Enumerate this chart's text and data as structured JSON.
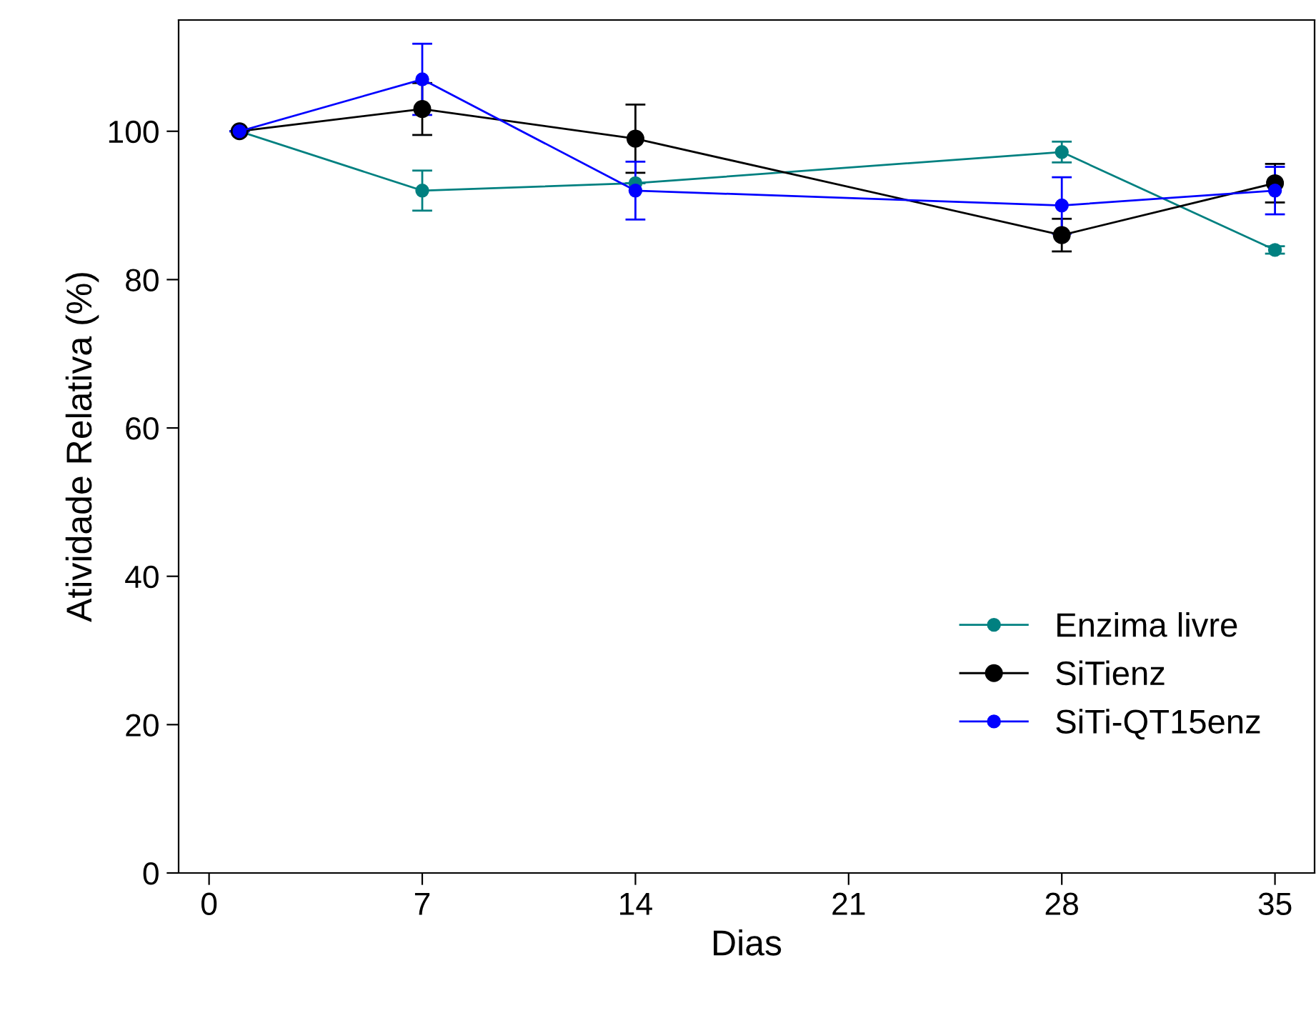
{
  "chart_data": {
    "type": "line",
    "xlabel": "Dias",
    "ylabel": "Atividade Relativa (%)",
    "x": [
      1,
      7,
      14,
      28,
      35
    ],
    "xlim": [
      -1,
      36.3
    ],
    "xticks": [
      0,
      7,
      14,
      21,
      28,
      35
    ],
    "ylim": [
      0,
      115
    ],
    "yticks": [
      0,
      20,
      40,
      60,
      80,
      100
    ],
    "marker": "circle",
    "line_style": "solid",
    "grid": false,
    "legend": "bottom right",
    "series": [
      {
        "name": "Enzima livre",
        "color": "#008080",
        "values": [
          100,
          92,
          93,
          97.2,
          84
        ],
        "errors": [
          null,
          2.7,
          null,
          1.4,
          0.5
        ]
      },
      {
        "name": "SiTienz",
        "color": "#000000",
        "values": [
          100,
          103,
          99,
          86,
          93
        ],
        "errors": [
          null,
          3.5,
          4.6,
          2.2,
          2.6
        ]
      },
      {
        "name": "SiTi-QT15enz",
        "color": "#0000ff",
        "values": [
          100,
          107,
          92,
          90,
          92
        ],
        "errors": [
          null,
          4.8,
          3.9,
          3.8,
          3.2
        ]
      }
    ]
  }
}
